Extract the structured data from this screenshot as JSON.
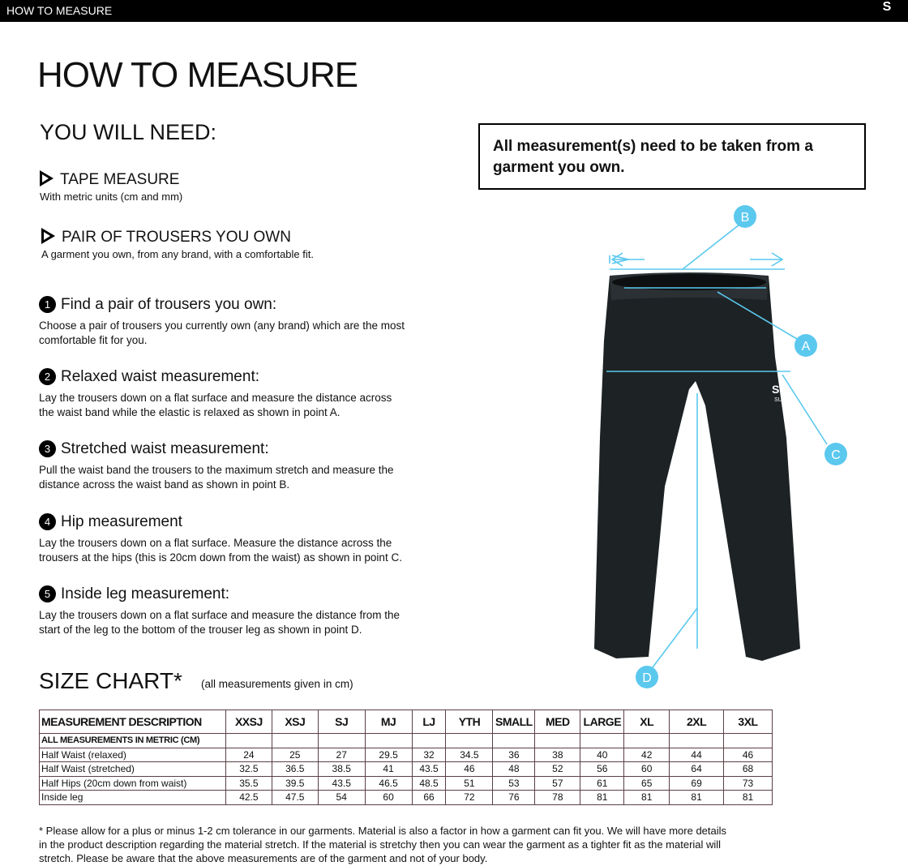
{
  "header": {
    "title": "HOW TO MEASURE",
    "logo_text": "SURRIDGE"
  },
  "title": "HOW TO MEASURE",
  "you_will_need": {
    "heading": "YOU WILL NEED:",
    "items": [
      {
        "title": "TAPE MEASURE",
        "subtitle": "With metric units (cm and mm)"
      },
      {
        "title": "PAIR OF TROUSERS YOU OWN",
        "subtitle": "A garment you own, from any brand, with a comfortable fit."
      }
    ]
  },
  "note": "All measurement(s) need to be taken from a garment you own.",
  "steps": [
    {
      "num": "1",
      "title": "Find a pair of trousers you own:",
      "text": "Choose a pair of trousers you currently own (any brand) which are the most comfortable fit for you."
    },
    {
      "num": "2",
      "title": "Relaxed waist measurement:",
      "text": "Lay the trousers down on a flat surface and measure the distance across the waist band while the elastic is relaxed as shown in point A."
    },
    {
      "num": "3",
      "title": "Stretched waist measurement:",
      "text": "Pull the waist band the trousers to the maximum stretch and measure the distance across the waist band as shown in point B."
    },
    {
      "num": "4",
      "title": "Hip measurement",
      "text": "Lay the trousers down on a flat surface. Measure the distance across the trousers at the hips (this is 20cm down from the waist) as shown in point C."
    },
    {
      "num": "5",
      "title": "Inside leg measurement:",
      "text": "Lay the trousers down on a flat surface and measure the distance from the start of the leg to the bottom of the trouser leg as shown in point D."
    }
  ],
  "diagram": {
    "labels": [
      "A",
      "B",
      "C",
      "D"
    ],
    "accent": "#5bc8ee",
    "garment_logo": "SURRIDGE"
  },
  "size_chart": {
    "heading": "SIZE CHART*",
    "subheading": "(all measurements given in cm)",
    "columns": [
      "MEASUREMENT DESCRIPTION",
      "XXSJ",
      "XSJ",
      "SJ",
      "MJ",
      "LJ",
      "YTH",
      "SMALL",
      "MED",
      "LARGE",
      "XL",
      "2XL",
      "3XL"
    ],
    "subheader": "ALL MEASUREMENTS IN METRIC (CM)",
    "rows": [
      {
        "label": "Half Waist (relaxed)",
        "values": [
          "24",
          "25",
          "27",
          "29.5",
          "32",
          "34.5",
          "36",
          "38",
          "40",
          "42",
          "44",
          "46"
        ]
      },
      {
        "label": "Half Waist (stretched)",
        "values": [
          "32.5",
          "36.5",
          "38.5",
          "41",
          "43.5",
          "46",
          "48",
          "52",
          "56",
          "60",
          "64",
          "68"
        ]
      },
      {
        "label": "Half Hips (20cm down from waist)",
        "values": [
          "35.5",
          "39.5",
          "43.5",
          "46.5",
          "48.5",
          "51",
          "53",
          "57",
          "61",
          "65",
          "69",
          "73"
        ]
      },
      {
        "label": "Inside leg",
        "values": [
          "42.5",
          "47.5",
          "54",
          "60",
          "66",
          "72",
          "76",
          "78",
          "81",
          "81",
          "81",
          "81"
        ]
      }
    ]
  },
  "footnote": "* Please allow for a plus or minus 1-2 cm tolerance in our garments. Material is also a factor in how a garment can fit you. We will have more details in the product description regarding the material stretch.  If the material is stretchy then you can wear the garment as a tighter fit as the material will stretch.  Please be aware that the above measurements are of the garment and not of your body."
}
